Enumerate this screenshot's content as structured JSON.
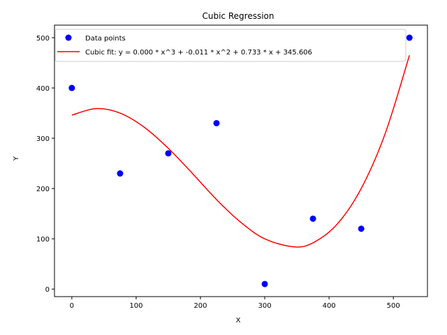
{
  "chart_data": {
    "type": "scatter",
    "title": "Cubic Regression",
    "xlabel": "X",
    "ylabel": "Y",
    "xlim": [
      -27,
      553
    ],
    "ylim": [
      -15,
      525
    ],
    "xticks": [
      0,
      100,
      200,
      300,
      400,
      500
    ],
    "yticks": [
      0,
      100,
      200,
      300,
      400,
      500
    ],
    "grid": false,
    "legend_position": "top-left",
    "series": [
      {
        "name": "Data points",
        "kind": "scatter",
        "color": "#0000ff",
        "x": [
          0,
          75,
          150,
          225,
          300,
          375,
          450,
          525
        ],
        "y": [
          400,
          230,
          270,
          330,
          10,
          140,
          120,
          500
        ]
      },
      {
        "name": "Cubic fit: y = 0.000 * x^3 + -0.011 * x^2 + 0.733 * x + 345.606",
        "kind": "line",
        "color": "#ff0000",
        "x": [
          0,
          37.5,
          75,
          112.5,
          150,
          187.5,
          225,
          262.5,
          300,
          345,
          375,
          412.5,
          450,
          487.5,
          525
        ],
        "y": [
          346,
          359,
          350,
          322,
          280,
          230,
          178,
          133,
          100,
          84,
          92,
          129,
          200,
          310,
          465
        ]
      }
    ]
  }
}
